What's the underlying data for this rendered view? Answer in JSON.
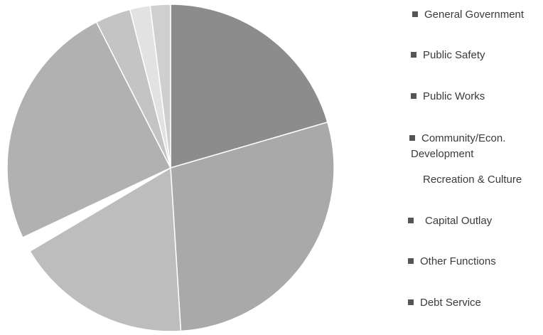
{
  "chart_data": {
    "type": "pie",
    "title": "",
    "categories": [
      "General Government",
      "Public Safety",
      "Public Works",
      "Community/Econ. Development",
      "Recreation & Culture",
      "Capital Outlay",
      "Other Functions",
      "Debt Service"
    ],
    "values": [
      20.5,
      28.5,
      17.5,
      1.5,
      24.5,
      3.5,
      2.0,
      2.0
    ],
    "colors": [
      "#8c8c8c",
      "#a9a9a9",
      "#bdbdbd",
      "#ffffff",
      "#b1b1b1",
      "#c4c4c4",
      "#e2e2e2",
      "#cfcfcf"
    ],
    "legend_position": "right"
  },
  "legend": {
    "items": [
      {
        "label": "General Government",
        "swatch": true
      },
      {
        "label": "Public Safety",
        "swatch": true
      },
      {
        "label": "Public Works",
        "swatch": true
      },
      {
        "label": "Community/Econ.",
        "label2": "Development",
        "swatch": true
      },
      {
        "label": "Recreation & Culture",
        "swatch": false
      },
      {
        "label": "Capital Outlay",
        "swatch": true
      },
      {
        "label": "Other Functions",
        "swatch": true
      },
      {
        "label": "Debt Service",
        "swatch": true
      }
    ]
  }
}
